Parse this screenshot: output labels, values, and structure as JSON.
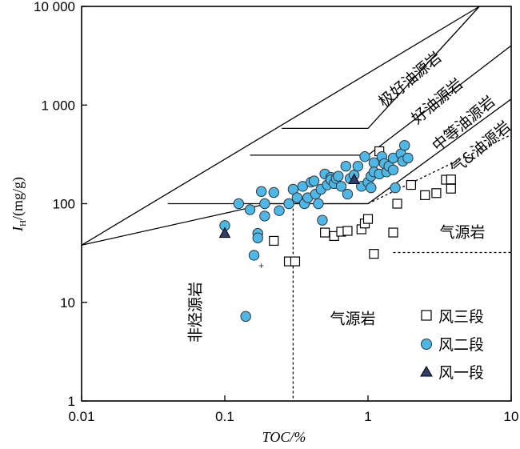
{
  "chart_data": {
    "type": "scatter",
    "xlabel": "TOC/%",
    "ylabel": {
      "main": "I",
      "sub": "H",
      "rest": "/(mg/g)"
    },
    "x_scale": "log",
    "y_scale": "log",
    "xlim": [
      0.01,
      10
    ],
    "ylim": [
      1,
      10000
    ],
    "x_ticks": [
      {
        "value": 0.01,
        "label": "0.01"
      },
      {
        "value": 0.1,
        "label": "0.1"
      },
      {
        "value": 1,
        "label": "1"
      },
      {
        "value": 10,
        "label": "10"
      }
    ],
    "y_ticks": [
      {
        "value": 1,
        "label": "1"
      },
      {
        "value": 10,
        "label": "10"
      },
      {
        "value": 100,
        "label": "100"
      },
      {
        "value": 1000,
        "label": "1 000"
      },
      {
        "value": 10000,
        "label": "10 000"
      }
    ],
    "regions": [
      {
        "label": "极好油源岩"
      },
      {
        "label": "好油源岩"
      },
      {
        "label": "中等油源岩"
      },
      {
        "label": "气&油源岩"
      },
      {
        "label": "气源岩"
      },
      {
        "label": "气源岩"
      },
      {
        "label": "非烃源岩"
      }
    ],
    "boundary_lines": [
      {
        "style": "solid",
        "points": [
          [
            0.01,
            38
          ],
          [
            0.2,
            100
          ],
          [
            1,
            100
          ],
          [
            10,
            1150
          ]
        ]
      },
      {
        "style": "solid",
        "points": [
          [
            0.04,
            100
          ],
          [
            1,
            100
          ]
        ]
      },
      {
        "style": "solid",
        "points": [
          [
            0.15,
            310
          ],
          [
            1,
            310
          ],
          [
            10,
            4000
          ]
        ]
      },
      {
        "style": "solid",
        "points": [
          [
            0.25,
            580
          ],
          [
            1,
            580
          ],
          [
            6,
            10000
          ]
        ]
      },
      {
        "style": "solid",
        "points": [
          [
            0.01,
            38
          ],
          [
            6,
            10000
          ]
        ]
      },
      {
        "style": "dashed",
        "points": [
          [
            1,
            100
          ],
          [
            10,
            500
          ]
        ]
      },
      {
        "style": "dashed",
        "points": [
          [
            0.3,
            100
          ],
          [
            0.3,
            1
          ]
        ]
      },
      {
        "style": "dashed",
        "points": [
          [
            1.5,
            32
          ],
          [
            10,
            32
          ]
        ]
      }
    ],
    "series": [
      {
        "name": "风三段",
        "marker": "square-open",
        "color": "#ffffff",
        "edge": "#000000",
        "points": [
          [
            0.22,
            42
          ],
          [
            0.28,
            26
          ],
          [
            0.31,
            26
          ],
          [
            0.5,
            51
          ],
          [
            0.58,
            47
          ],
          [
            0.65,
            52
          ],
          [
            0.72,
            53
          ],
          [
            0.9,
            55
          ],
          [
            0.95,
            63
          ],
          [
            1.0,
            70
          ],
          [
            1.1,
            31
          ],
          [
            1.5,
            51
          ],
          [
            1.6,
            100
          ],
          [
            2.0,
            155
          ],
          [
            2.5,
            122
          ],
          [
            3.0,
            128
          ],
          [
            3.5,
            175
          ],
          [
            3.8,
            142
          ],
          [
            3.8,
            176
          ],
          [
            1.2,
            340
          ]
        ]
      },
      {
        "name": "风二段",
        "marker": "circle",
        "color": "#4db8e8",
        "edge": "#333333",
        "points": [
          [
            0.1,
            60
          ],
          [
            0.125,
            100
          ],
          [
            0.15,
            87
          ],
          [
            0.16,
            30
          ],
          [
            0.17,
            50
          ],
          [
            0.17,
            45
          ],
          [
            0.18,
            133
          ],
          [
            0.19,
            100
          ],
          [
            0.19,
            75
          ],
          [
            0.22,
            130
          ],
          [
            0.24,
            85
          ],
          [
            0.28,
            100
          ],
          [
            0.3,
            140
          ],
          [
            0.32,
            115
          ],
          [
            0.35,
            150
          ],
          [
            0.36,
            100
          ],
          [
            0.38,
            115
          ],
          [
            0.4,
            165
          ],
          [
            0.42,
            170
          ],
          [
            0.43,
            125
          ],
          [
            0.45,
            100
          ],
          [
            0.47,
            140
          ],
          [
            0.5,
            200
          ],
          [
            0.52,
            155
          ],
          [
            0.55,
            185
          ],
          [
            0.55,
            175
          ],
          [
            0.58,
            160
          ],
          [
            0.6,
            180
          ],
          [
            0.62,
            190
          ],
          [
            0.65,
            150
          ],
          [
            0.7,
            240
          ],
          [
            0.72,
            125
          ],
          [
            0.75,
            180
          ],
          [
            0.8,
            195
          ],
          [
            0.85,
            240
          ],
          [
            0.9,
            150
          ],
          [
            0.95,
            300
          ],
          [
            1.0,
            165
          ],
          [
            1.05,
            145
          ],
          [
            1.05,
            190
          ],
          [
            1.1,
            260
          ],
          [
            1.1,
            210
          ],
          [
            1.2,
            200
          ],
          [
            1.25,
            300
          ],
          [
            1.3,
            255
          ],
          [
            1.35,
            210
          ],
          [
            1.4,
            240
          ],
          [
            1.5,
            220
          ],
          [
            1.5,
            290
          ],
          [
            1.55,
            145
          ],
          [
            1.7,
            320
          ],
          [
            1.75,
            270
          ],
          [
            1.8,
            390
          ],
          [
            1.9,
            290
          ],
          [
            0.48,
            68
          ],
          [
            0.14,
            7.2
          ]
        ]
      },
      {
        "name": "风一段",
        "marker": "triangle",
        "color": "#2e3f6b",
        "edge": "#000000",
        "points": [
          [
            0.1,
            50
          ],
          [
            0.8,
            175
          ]
        ]
      }
    ],
    "annotations": [
      {
        "text": "+",
        "x": 0.18,
        "y": 23.5
      }
    ],
    "legend": {
      "placement": "bottom-right"
    }
  }
}
